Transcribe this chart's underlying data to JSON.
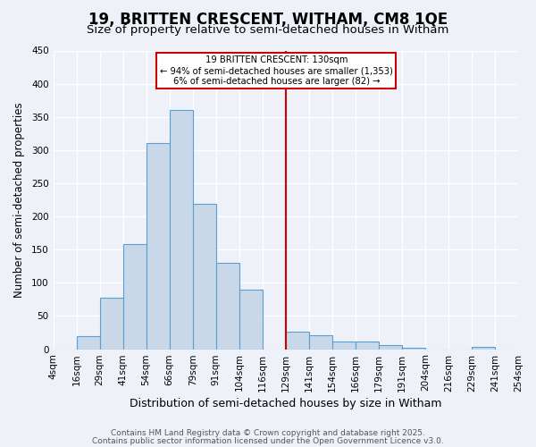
{
  "title": "19, BRITTEN CRESCENT, WITHAM, CM8 1QE",
  "subtitle": "Size of property relative to semi-detached houses in Witham",
  "xlabel": "Distribution of semi-detached houses by size in Witham",
  "ylabel": "Number of semi-detached properties",
  "bin_labels": [
    "4sqm",
    "16sqm",
    "29sqm",
    "41sqm",
    "54sqm",
    "66sqm",
    "79sqm",
    "91sqm",
    "104sqm",
    "116sqm",
    "129sqm",
    "141sqm",
    "154sqm",
    "166sqm",
    "179sqm",
    "191sqm",
    "204sqm",
    "216sqm",
    "229sqm",
    "241sqm",
    "254sqm"
  ],
  "bar_values": [
    0,
    20,
    77,
    158,
    311,
    360,
    219,
    130,
    90,
    0,
    27,
    21,
    12,
    12,
    6,
    2,
    0,
    0,
    3,
    0
  ],
  "bar_color": "#c8d8e8",
  "bar_edge_color": "#5a9fd4",
  "vline_label_idx": 10,
  "vline_color": "#cc0000",
  "annotation_title": "19 BRITTEN CRESCENT: 130sqm",
  "annotation_line1": "← 94% of semi-detached houses are smaller (1,353)",
  "annotation_line2": "6% of semi-detached houses are larger (82) →",
  "annotation_box_edgecolor": "#cc0000",
  "ylim": [
    0,
    450
  ],
  "yticks": [
    0,
    50,
    100,
    150,
    200,
    250,
    300,
    350,
    400,
    450
  ],
  "background_color": "#eef2f8",
  "grid_color": "#ffffff",
  "footer1": "Contains HM Land Registry data © Crown copyright and database right 2025.",
  "footer2": "Contains public sector information licensed under the Open Government Licence v3.0.",
  "title_fontsize": 12,
  "subtitle_fontsize": 9.5,
  "xlabel_fontsize": 9,
  "ylabel_fontsize": 8.5,
  "tick_fontsize": 7.5,
  "footer_fontsize": 6.5
}
